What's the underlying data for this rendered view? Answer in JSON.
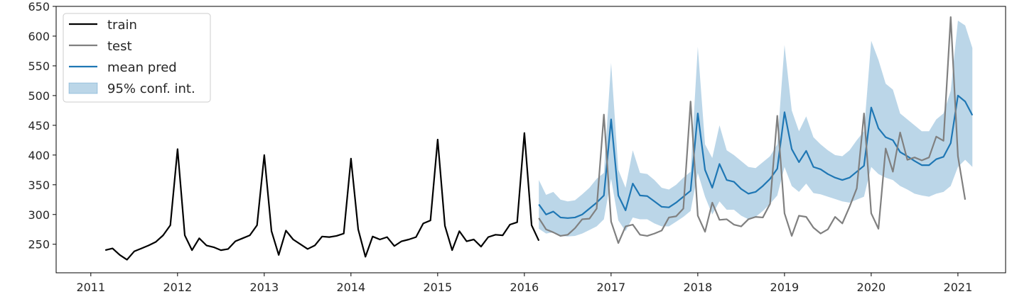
{
  "chart_data": {
    "type": "line",
    "title": "",
    "xlabel": "",
    "ylabel": "",
    "xlim": [
      2010.6,
      2021.55
    ],
    "ylim": [
      202,
      650
    ],
    "x_ticks": [
      2011,
      2012,
      2013,
      2014,
      2015,
      2016,
      2017,
      2018,
      2019,
      2020,
      2021
    ],
    "x_tick_labels": [
      "2011",
      "2012",
      "2013",
      "2014",
      "2015",
      "2016",
      "2017",
      "2018",
      "2019",
      "2020",
      "2021"
    ],
    "y_ticks": [
      250,
      300,
      350,
      400,
      450,
      500,
      550,
      600,
      650
    ],
    "y_tick_labels": [
      "250",
      "300",
      "350",
      "400",
      "450",
      "500",
      "550",
      "600",
      "650"
    ],
    "grid": false,
    "legend_position": "top-left",
    "legend": [
      "train",
      "test",
      "mean pred",
      "95% conf. int."
    ],
    "colors": {
      "train": "#000000",
      "test": "#808080",
      "mean_pred": "#1f77b4",
      "ci_fill": "#1f77b4",
      "axis": "#000000"
    },
    "train": {
      "name": "train",
      "start": 2011.167,
      "step": 0.08333,
      "values": [
        240,
        243,
        232,
        224,
        238,
        243,
        248,
        254,
        265,
        282,
        410,
        265,
        240,
        260,
        248,
        245,
        240,
        242,
        255,
        260,
        265,
        282,
        400,
        272,
        232,
        273,
        258,
        250,
        242,
        248,
        263,
        262,
        264,
        268,
        394,
        275,
        229,
        263,
        258,
        262,
        247,
        255,
        258,
        262,
        285,
        290,
        426,
        281,
        240,
        272,
        255,
        258,
        246,
        262,
        266,
        265,
        283,
        287,
        437,
        282,
        256
      ]
    },
    "test": {
      "name": "test",
      "start": 2016.167,
      "step": 0.08333,
      "values": [
        294,
        275,
        270,
        264,
        266,
        277,
        292,
        293,
        310,
        468,
        288,
        252,
        280,
        283,
        266,
        264,
        268,
        273,
        295,
        297,
        310,
        490,
        298,
        271,
        320,
        291,
        292,
        283,
        280,
        292,
        296,
        295,
        318,
        466,
        302,
        264,
        298,
        296,
        278,
        268,
        275,
        296,
        285,
        313,
        344,
        470,
        302,
        276,
        411,
        372,
        438,
        392,
        396,
        391,
        396,
        431,
        424,
        632,
        398,
        325
      ]
    },
    "mean_pred": {
      "name": "mean pred",
      "start": 2016.167,
      "step": 0.08333,
      "values": [
        317,
        300,
        305,
        295,
        294,
        295,
        300,
        310,
        320,
        332,
        460,
        332,
        307,
        352,
        332,
        331,
        322,
        313,
        312,
        320,
        330,
        340,
        470,
        375,
        345,
        385,
        358,
        355,
        343,
        335,
        338,
        348,
        360,
        377,
        472,
        410,
        388,
        407,
        380,
        376,
        368,
        362,
        358,
        362,
        372,
        382,
        480,
        445,
        430,
        425,
        405,
        398,
        390,
        383,
        383,
        393,
        397,
        420,
        500,
        490,
        467
      ]
    },
    "ci_upper": {
      "name": "95% conf. int. upper",
      "start": 2016.167,
      "step": 0.08333,
      "values": [
        358,
        333,
        338,
        325,
        322,
        324,
        334,
        345,
        360,
        370,
        555,
        375,
        345,
        408,
        370,
        368,
        358,
        345,
        342,
        350,
        362,
        372,
        582,
        418,
        395,
        450,
        408,
        400,
        390,
        380,
        378,
        388,
        398,
        418,
        585,
        475,
        440,
        465,
        430,
        418,
        408,
        400,
        398,
        408,
        425,
        440,
        592,
        560,
        520,
        510,
        470,
        460,
        450,
        440,
        440,
        460,
        470,
        508,
        626,
        618,
        580
      ]
    },
    "ci_lower": {
      "name": "95% conf. int. lower",
      "start": 2016.167,
      "step": 0.08333,
      "values": [
        276,
        268,
        270,
        264,
        263,
        264,
        268,
        274,
        280,
        292,
        360,
        290,
        272,
        295,
        292,
        292,
        285,
        280,
        280,
        288,
        296,
        306,
        370,
        330,
        300,
        322,
        308,
        308,
        298,
        292,
        296,
        306,
        318,
        332,
        380,
        348,
        338,
        352,
        336,
        334,
        330,
        326,
        322,
        320,
        325,
        330,
        380,
        368,
        362,
        358,
        348,
        342,
        335,
        332,
        330,
        335,
        338,
        348,
        380,
        392,
        380
      ]
    }
  }
}
